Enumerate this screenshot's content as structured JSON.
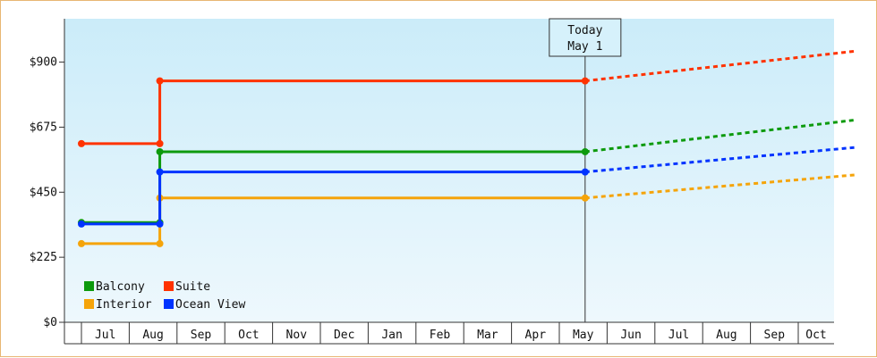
{
  "chart_data": {
    "type": "line",
    "y_ticks": [
      "$0",
      "$225",
      "$450",
      "$675",
      "$900"
    ],
    "y_tick_values": [
      0,
      225,
      450,
      675,
      900
    ],
    "ylim": [
      0,
      1050
    ],
    "months": [
      "Jul",
      "Aug",
      "Sep",
      "Oct",
      "Nov",
      "Dec",
      "Jan",
      "Feb",
      "Mar",
      "Apr",
      "May",
      "Jun",
      "Jul",
      "Aug",
      "Sep",
      "Oct"
    ],
    "today": {
      "line1": "Today",
      "line2": "May 1"
    },
    "grid": false,
    "legend_position": "bottom-left",
    "series": [
      {
        "name": "Balcony",
        "color": "#0d9a0d",
        "history": [
          [
            0,
            345
          ],
          [
            1.64,
            345
          ],
          [
            1.64,
            590
          ],
          [
            10.54,
            590
          ]
        ],
        "forecast": [
          [
            10.54,
            590
          ],
          [
            16.2,
            700
          ]
        ]
      },
      {
        "name": "Suite",
        "color": "#ff3300",
        "history": [
          [
            0,
            618
          ],
          [
            1.64,
            618
          ],
          [
            1.64,
            835
          ],
          [
            10.54,
            835
          ]
        ],
        "forecast": [
          [
            10.54,
            835
          ],
          [
            16.2,
            938
          ]
        ]
      },
      {
        "name": "Interior",
        "color": "#f5a40a",
        "history": [
          [
            0,
            272
          ],
          [
            1.64,
            272
          ],
          [
            1.64,
            430
          ],
          [
            10.54,
            430
          ]
        ],
        "forecast": [
          [
            10.54,
            430
          ],
          [
            16.2,
            510
          ]
        ]
      },
      {
        "name": "Ocean View",
        "color": "#0033ff",
        "history": [
          [
            0,
            340
          ],
          [
            1.64,
            340
          ],
          [
            1.64,
            520
          ],
          [
            10.54,
            520
          ]
        ],
        "forecast": [
          [
            10.54,
            520
          ],
          [
            16.2,
            605
          ]
        ]
      }
    ]
  }
}
